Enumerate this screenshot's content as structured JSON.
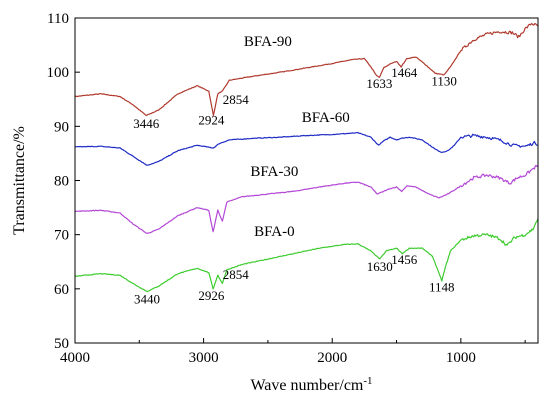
{
  "chart_data": {
    "type": "line",
    "xlabel": "Wave number/cm",
    "xlabel_sup": "-1",
    "ylabel": "Transmittance/%",
    "xlim": [
      4000,
      400
    ],
    "ylim": [
      50,
      110
    ],
    "x_ticks": [
      4000,
      3000,
      2000,
      1000
    ],
    "y_ticks": [
      50,
      60,
      70,
      80,
      90,
      100,
      110
    ],
    "grid": false,
    "series": [
      {
        "name": "BFA-90",
        "color": "#B03A2E",
        "points": [
          [
            4000,
            95.5
          ],
          [
            3800,
            96
          ],
          [
            3650,
            95.5
          ],
          [
            3550,
            94
          ],
          [
            3446,
            92
          ],
          [
            3350,
            93
          ],
          [
            3200,
            96
          ],
          [
            3050,
            97.5
          ],
          [
            2960,
            96.5
          ],
          [
            2924,
            92
          ],
          [
            2890,
            96
          ],
          [
            2854,
            96.5
          ],
          [
            2800,
            98.5
          ],
          [
            2600,
            99.3
          ],
          [
            2400,
            100
          ],
          [
            2200,
            100.8
          ],
          [
            2000,
            101.6
          ],
          [
            1850,
            102.3
          ],
          [
            1750,
            102.5
          ],
          [
            1700,
            101
          ],
          [
            1660,
            99.5
          ],
          [
            1633,
            99
          ],
          [
            1600,
            100.8
          ],
          [
            1550,
            101.5
          ],
          [
            1500,
            102
          ],
          [
            1464,
            101
          ],
          [
            1420,
            102.5
          ],
          [
            1350,
            102.8
          ],
          [
            1280,
            101.5
          ],
          [
            1200,
            99.8
          ],
          [
            1130,
            99.5
          ],
          [
            1080,
            101
          ],
          [
            1000,
            104
          ],
          [
            900,
            106
          ],
          [
            800,
            107
          ],
          [
            700,
            107.5
          ],
          [
            600,
            107.3
          ],
          [
            550,
            106.5
          ],
          [
            500,
            108
          ],
          [
            450,
            109
          ],
          [
            400,
            108.5
          ]
        ]
      },
      {
        "name": "BFA-60",
        "color": "#1F2BC4",
        "points": [
          [
            4000,
            86.2
          ],
          [
            3800,
            86.3
          ],
          [
            3650,
            86
          ],
          [
            3550,
            84.5
          ],
          [
            3440,
            82.8
          ],
          [
            3350,
            83.5
          ],
          [
            3200,
            85.5
          ],
          [
            3050,
            86.5
          ],
          [
            2924,
            86
          ],
          [
            2880,
            86.8
          ],
          [
            2800,
            87.5
          ],
          [
            2600,
            87.8
          ],
          [
            2400,
            88
          ],
          [
            2200,
            88.3
          ],
          [
            2000,
            88.5
          ],
          [
            1800,
            88.8
          ],
          [
            1700,
            88
          ],
          [
            1640,
            86.5
          ],
          [
            1600,
            87.3
          ],
          [
            1550,
            88
          ],
          [
            1500,
            87.5
          ],
          [
            1460,
            87.8
          ],
          [
            1400,
            88
          ],
          [
            1300,
            87.5
          ],
          [
            1200,
            85.8
          ],
          [
            1150,
            85.2
          ],
          [
            1100,
            85.5
          ],
          [
            1050,
            86.5
          ],
          [
            1000,
            88
          ],
          [
            900,
            88.3
          ],
          [
            800,
            88
          ],
          [
            700,
            87.5
          ],
          [
            600,
            86.5
          ],
          [
            500,
            86.3
          ],
          [
            420,
            87
          ],
          [
            400,
            86.5
          ]
        ]
      },
      {
        "name": "BFA-30",
        "color": "#B347D6",
        "points": [
          [
            4000,
            74.3
          ],
          [
            3800,
            74.5
          ],
          [
            3650,
            74
          ],
          [
            3550,
            72
          ],
          [
            3440,
            70.2
          ],
          [
            3350,
            71
          ],
          [
            3200,
            73.5
          ],
          [
            3050,
            75
          ],
          [
            2960,
            74.5
          ],
          [
            2926,
            70.5
          ],
          [
            2890,
            74.5
          ],
          [
            2854,
            72.5
          ],
          [
            2820,
            76
          ],
          [
            2700,
            77
          ],
          [
            2500,
            77.5
          ],
          [
            2300,
            78
          ],
          [
            2100,
            78.8
          ],
          [
            1900,
            79.5
          ],
          [
            1800,
            79.7
          ],
          [
            1700,
            78.8
          ],
          [
            1650,
            77.5
          ],
          [
            1600,
            78
          ],
          [
            1550,
            78.5
          ],
          [
            1500,
            78.8
          ],
          [
            1460,
            78
          ],
          [
            1420,
            79
          ],
          [
            1350,
            78.8
          ],
          [
            1250,
            77.5
          ],
          [
            1170,
            76.8
          ],
          [
            1100,
            77.5
          ],
          [
            1000,
            79
          ],
          [
            900,
            80.5
          ],
          [
            800,
            81
          ],
          [
            700,
            80.5
          ],
          [
            620,
            79.5
          ],
          [
            560,
            80.5
          ],
          [
            500,
            81
          ],
          [
            420,
            82.5
          ],
          [
            400,
            82.8
          ]
        ]
      },
      {
        "name": "BFA-0",
        "color": "#3DCC2E",
        "points": [
          [
            4000,
            62.3
          ],
          [
            3800,
            62.8
          ],
          [
            3650,
            62.5
          ],
          [
            3550,
            61
          ],
          [
            3440,
            59.5
          ],
          [
            3350,
            60.5
          ],
          [
            3200,
            62.8
          ],
          [
            3050,
            63.8
          ],
          [
            2960,
            63
          ],
          [
            2926,
            60
          ],
          [
            2890,
            62.5
          ],
          [
            2854,
            61
          ],
          [
            2820,
            63.5
          ],
          [
            2700,
            64.5
          ],
          [
            2500,
            65.5
          ],
          [
            2300,
            66.5
          ],
          [
            2100,
            67.5
          ],
          [
            1900,
            68.2
          ],
          [
            1800,
            68.3
          ],
          [
            1700,
            67
          ],
          [
            1630,
            65.5
          ],
          [
            1580,
            67
          ],
          [
            1500,
            67.5
          ],
          [
            1456,
            66.5
          ],
          [
            1400,
            67.5
          ],
          [
            1300,
            67.5
          ],
          [
            1220,
            66
          ],
          [
            1180,
            63.5
          ],
          [
            1148,
            61.5
          ],
          [
            1120,
            64
          ],
          [
            1080,
            67
          ],
          [
            1000,
            69
          ],
          [
            900,
            69.8
          ],
          [
            800,
            70
          ],
          [
            700,
            69.3
          ],
          [
            640,
            68
          ],
          [
            580,
            69.5
          ],
          [
            500,
            70
          ],
          [
            440,
            71
          ],
          [
            400,
            73
          ]
        ]
      }
    ],
    "annotations": [
      {
        "text": "BFA-90",
        "x": 2500,
        "y": 104.8
      },
      {
        "text": "BFA-60",
        "x": 2050,
        "y": 90.8
      },
      {
        "text": "BFA-30",
        "x": 2450,
        "y": 80.8
      },
      {
        "text": "BFA-0",
        "x": 2450,
        "y": 69.8
      },
      {
        "text": "3446",
        "x": 3446,
        "y": 89.7
      },
      {
        "text": "2924",
        "x": 2940,
        "y": 90.3
      },
      {
        "text": "2854",
        "x": 2750,
        "y": 94.1
      },
      {
        "text": "1633",
        "x": 1633,
        "y": 97.1
      },
      {
        "text": "1464",
        "x": 1440,
        "y": 99.1
      },
      {
        "text": "1130",
        "x": 1130,
        "y": 97.5
      },
      {
        "text": "3440",
        "x": 3440,
        "y": 57.3
      },
      {
        "text": "2926",
        "x": 2940,
        "y": 57.9
      },
      {
        "text": "2854",
        "x": 2750,
        "y": 61.8
      },
      {
        "text": "1630",
        "x": 1630,
        "y": 63.3
      },
      {
        "text": "1456",
        "x": 1440,
        "y": 64.6
      },
      {
        "text": "1148",
        "x": 1148,
        "y": 59.5
      }
    ]
  }
}
